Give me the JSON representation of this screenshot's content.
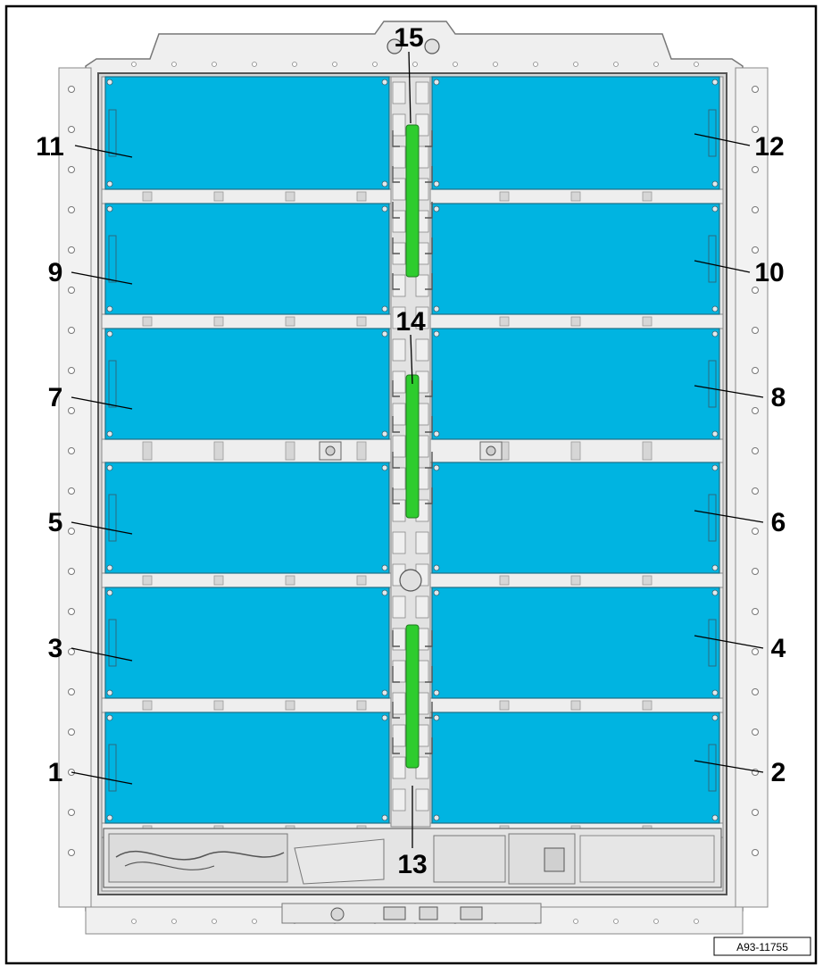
{
  "figure": {
    "reference_id": "A93-11755",
    "callouts": {
      "c1": "1",
      "c2": "2",
      "c3": "3",
      "c4": "4",
      "c5": "5",
      "c6": "6",
      "c7": "7",
      "c8": "8",
      "c9": "9",
      "c10": "10",
      "c11": "11",
      "c12": "12",
      "c13": "13",
      "c14": "14",
      "c15": "15"
    }
  },
  "colors": {
    "module": "#00b4e1",
    "module_edge": "#1f6f86",
    "frame": "#eeeeee",
    "frame_line": "#8a8a8a",
    "wiring_harness": "#2ecc2e",
    "border": "#000000"
  },
  "icons": [
    "bolt-icon",
    "connector-icon"
  ]
}
